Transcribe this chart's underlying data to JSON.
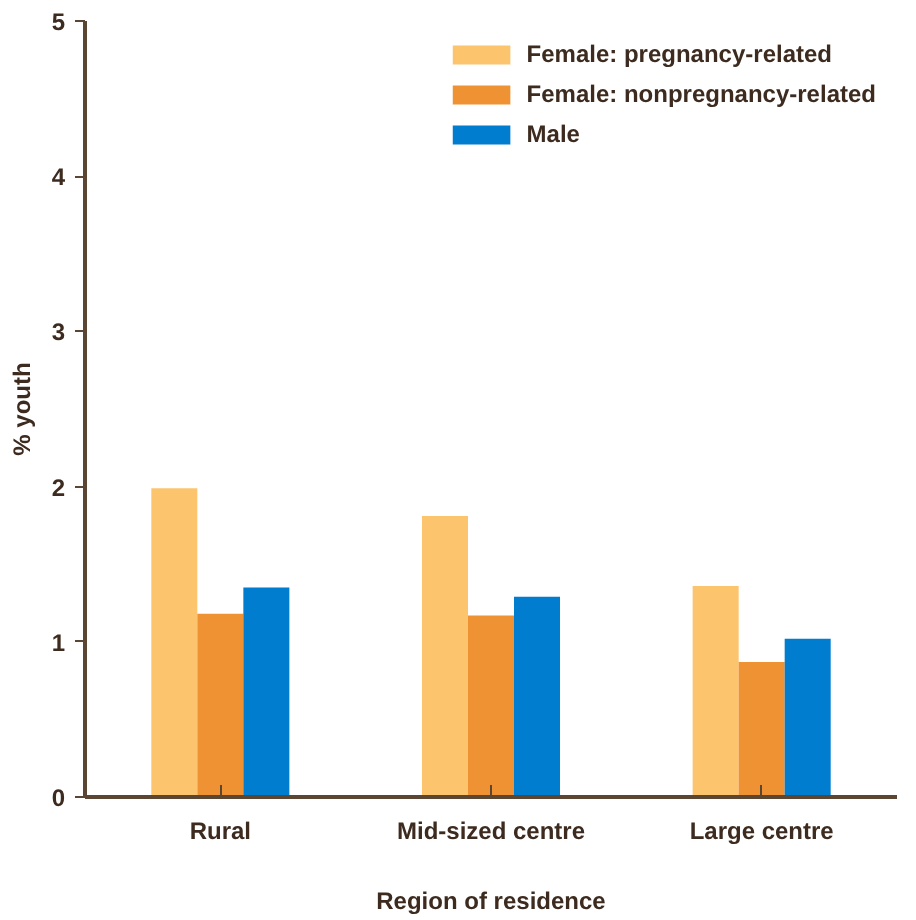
{
  "chart_data": {
    "type": "bar",
    "xlabel": "Region of residence",
    "ylabel": "% youth",
    "categories": [
      "Rural",
      "Mid-sized centre",
      "Large centre"
    ],
    "series": [
      {
        "name": "Female: pregnancy-related",
        "color": "#fdc46e",
        "values": [
          1.99,
          1.81,
          1.36
        ]
      },
      {
        "name": "Female: nonpregnancy-related",
        "color": "#ef9233",
        "values": [
          1.18,
          1.17,
          0.87
        ]
      },
      {
        "name": "Male",
        "color": "#007dcf",
        "values": [
          1.35,
          1.29,
          1.02
        ]
      }
    ],
    "ylim": [
      0,
      5
    ],
    "yticks": [
      0,
      1,
      2,
      3,
      4,
      5
    ],
    "grid": false,
    "legend": "top right"
  }
}
